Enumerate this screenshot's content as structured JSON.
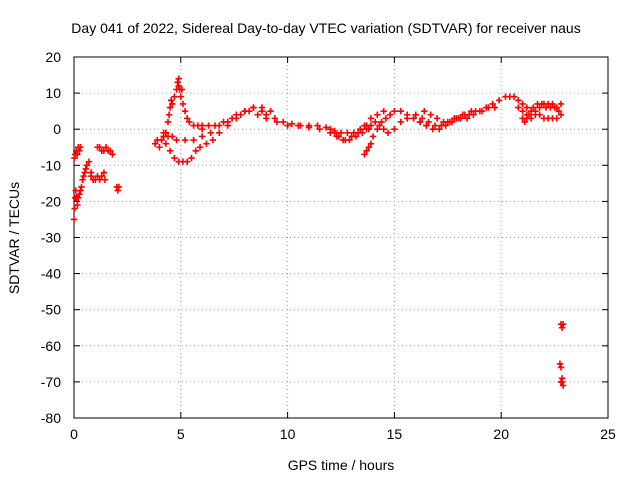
{
  "chart_data": {
    "type": "scatter",
    "title": "Day 041 of 2022, Sidereal Day-to-day VTEC variation (SDTVAR) for receiver naus",
    "xlabel": "GPS time / hours",
    "ylabel": "SDTVAR / TECUs",
    "xlim": [
      0,
      25
    ],
    "ylim": [
      -80,
      20
    ],
    "grid": true,
    "marker": "+",
    "color": "#ff0000",
    "x_ticks": [
      0,
      5,
      10,
      15,
      20,
      25
    ],
    "x_tick_labels": [
      "0",
      "5",
      "10",
      "15",
      "20",
      "25"
    ],
    "y_ticks": [
      20,
      10,
      0,
      -10,
      -20,
      -30,
      -40,
      -50,
      -60,
      -70,
      -80
    ],
    "y_tick_labels": [
      "20",
      "10",
      "0",
      "-10",
      "-20",
      "-30",
      "-40",
      "-50",
      "-60",
      "-70",
      "-80"
    ],
    "series": [
      {
        "name": "SDTVAR",
        "points": [
          [
            0.0,
            -25
          ],
          [
            0.03,
            -22
          ],
          [
            0.05,
            -19
          ],
          [
            0.08,
            -17
          ],
          [
            0.12,
            -19
          ],
          [
            0.16,
            -21
          ],
          [
            0.2,
            -19
          ],
          [
            0.25,
            -18
          ],
          [
            0.3,
            -17
          ],
          [
            0.35,
            -16
          ],
          [
            0.4,
            -14
          ],
          [
            0.45,
            -13
          ],
          [
            0.5,
            -12
          ],
          [
            0.55,
            -11
          ],
          [
            0.6,
            -10
          ],
          [
            0.7,
            -9
          ],
          [
            0.8,
            -12
          ],
          [
            0.02,
            -8
          ],
          [
            0.05,
            -7
          ],
          [
            0.1,
            -6
          ],
          [
            0.15,
            -7
          ],
          [
            0.2,
            -5
          ],
          [
            0.25,
            -6
          ],
          [
            0.3,
            -5
          ],
          [
            0.8,
            -13
          ],
          [
            0.9,
            -14
          ],
          [
            1.0,
            -14
          ],
          [
            1.1,
            -13
          ],
          [
            1.2,
            -14
          ],
          [
            1.3,
            -13
          ],
          [
            1.4,
            -12
          ],
          [
            1.45,
            -14
          ],
          [
            1.1,
            -5
          ],
          [
            1.2,
            -5
          ],
          [
            1.3,
            -6
          ],
          [
            1.4,
            -6
          ],
          [
            1.5,
            -5
          ],
          [
            1.6,
            -6
          ],
          [
            1.7,
            -6
          ],
          [
            1.8,
            -7
          ],
          [
            2.0,
            -16
          ],
          [
            2.05,
            -17
          ],
          [
            2.1,
            -16
          ],
          [
            3.8,
            -4
          ],
          [
            3.9,
            -3
          ],
          [
            4.0,
            -5
          ],
          [
            4.1,
            -3
          ],
          [
            4.2,
            -2
          ],
          [
            4.3,
            -1
          ],
          [
            4.4,
            2
          ],
          [
            4.45,
            4
          ],
          [
            4.5,
            6
          ],
          [
            4.55,
            8
          ],
          [
            4.6,
            7
          ],
          [
            4.7,
            9
          ],
          [
            4.8,
            11
          ],
          [
            4.9,
            12
          ],
          [
            4.95,
            11
          ],
          [
            5.0,
            9
          ],
          [
            5.1,
            7
          ],
          [
            5.2,
            5
          ],
          [
            5.3,
            3
          ],
          [
            5.4,
            2
          ],
          [
            5.6,
            1
          ],
          [
            5.8,
            1
          ],
          [
            6.0,
            1
          ],
          [
            4.3,
            -4
          ],
          [
            4.5,
            -6
          ],
          [
            4.7,
            -8
          ],
          [
            4.9,
            -9
          ],
          [
            5.1,
            -9
          ],
          [
            5.3,
            -9
          ],
          [
            5.5,
            -8
          ],
          [
            5.7,
            -6
          ],
          [
            5.9,
            -5
          ],
          [
            6.2,
            -4
          ],
          [
            6.5,
            -3
          ],
          [
            6.8,
            -1
          ],
          [
            7.2,
            1
          ],
          [
            7.6,
            3
          ],
          [
            8.0,
            5
          ],
          [
            8.4,
            6
          ],
          [
            8.8,
            6
          ],
          [
            9.2,
            5
          ],
          [
            4.2,
            -1
          ],
          [
            4.4,
            -2
          ],
          [
            4.6,
            -2
          ],
          [
            4.8,
            -3
          ],
          [
            5.2,
            -3
          ],
          [
            5.6,
            -3
          ],
          [
            6.0,
            -2
          ],
          [
            6.4,
            -1
          ],
          [
            6.8,
            1
          ],
          [
            7.2,
            2
          ],
          [
            7.6,
            4
          ],
          [
            8.0,
            5
          ],
          [
            8.4,
            6
          ],
          [
            8.8,
            5
          ],
          [
            4.9,
            14
          ],
          [
            4.85,
            13
          ],
          [
            5.05,
            11
          ],
          [
            6.0,
            0
          ],
          [
            6.3,
            1
          ],
          [
            6.6,
            1
          ],
          [
            7.0,
            2
          ],
          [
            7.4,
            3
          ],
          [
            7.8,
            4
          ],
          [
            8.2,
            5
          ],
          [
            8.6,
            4
          ],
          [
            9.0,
            4
          ],
          [
            9.4,
            3
          ],
          [
            9.8,
            2
          ],
          [
            10.2,
            1.5
          ],
          [
            10.6,
            1
          ],
          [
            11.0,
            1
          ],
          [
            11.4,
            1
          ],
          [
            11.8,
            0.5
          ],
          [
            12.0,
            0
          ],
          [
            12.2,
            -0.5
          ],
          [
            12.5,
            -1
          ],
          [
            12.8,
            -1
          ],
          [
            13.1,
            -1
          ],
          [
            13.4,
            0
          ],
          [
            13.7,
            1
          ],
          [
            9.0,
            3
          ],
          [
            9.5,
            2
          ],
          [
            10.0,
            1
          ],
          [
            10.5,
            1
          ],
          [
            11.0,
            0.5
          ],
          [
            11.5,
            0
          ],
          [
            12.0,
            -1
          ],
          [
            12.3,
            -2
          ],
          [
            12.6,
            -3
          ],
          [
            12.9,
            -3
          ],
          [
            13.2,
            -2
          ],
          [
            13.5,
            -1
          ],
          [
            13.8,
            0
          ],
          [
            12.2,
            -1
          ],
          [
            12.4,
            -2
          ],
          [
            12.7,
            -3
          ],
          [
            13.0,
            -2
          ],
          [
            13.3,
            -1
          ],
          [
            13.6,
            1
          ],
          [
            13.9,
            3
          ],
          [
            14.2,
            4
          ],
          [
            14.5,
            5
          ],
          [
            14.8,
            4
          ],
          [
            13.6,
            -7
          ],
          [
            13.7,
            -6
          ],
          [
            13.8,
            -5
          ],
          [
            13.9,
            -4
          ],
          [
            14.0,
            -2
          ],
          [
            14.2,
            0
          ],
          [
            14.4,
            2
          ],
          [
            14.6,
            3
          ],
          [
            14.8,
            4
          ],
          [
            15.0,
            5
          ],
          [
            15.3,
            5
          ],
          [
            15.6,
            4
          ],
          [
            15.9,
            3
          ],
          [
            16.2,
            2
          ],
          [
            16.5,
            1
          ],
          [
            13.7,
            0
          ],
          [
            13.9,
            1
          ],
          [
            14.1,
            2
          ],
          [
            14.3,
            1
          ],
          [
            14.5,
            0
          ],
          [
            14.7,
            -1
          ],
          [
            15.0,
            0
          ],
          [
            15.3,
            2
          ],
          [
            15.6,
            3
          ],
          [
            16.0,
            4
          ],
          [
            16.3,
            3
          ],
          [
            16.6,
            2
          ],
          [
            16.9,
            1
          ],
          [
            17.2,
            1
          ],
          [
            17.5,
            2
          ],
          [
            17.8,
            3
          ],
          [
            18.1,
            3
          ],
          [
            18.4,
            3
          ],
          [
            18.7,
            4
          ],
          [
            19.0,
            5
          ],
          [
            19.3,
            6
          ],
          [
            19.6,
            7
          ],
          [
            19.9,
            8
          ],
          [
            20.2,
            9
          ],
          [
            20.4,
            9
          ],
          [
            16.2,
            2
          ],
          [
            16.5,
            1
          ],
          [
            16.8,
            0
          ],
          [
            17.1,
            0
          ],
          [
            17.4,
            1
          ],
          [
            17.7,
            2
          ],
          [
            18.0,
            3
          ],
          [
            18.3,
            4
          ],
          [
            18.6,
            5
          ],
          [
            16.4,
            5
          ],
          [
            16.7,
            4
          ],
          [
            17.0,
            3
          ],
          [
            17.3,
            2
          ],
          [
            17.6,
            2
          ],
          [
            17.9,
            3
          ],
          [
            18.2,
            4
          ],
          [
            18.5,
            4
          ],
          [
            18.8,
            5
          ],
          [
            19.1,
            5
          ],
          [
            19.4,
            6
          ],
          [
            19.7,
            6
          ],
          [
            20.6,
            9
          ],
          [
            20.8,
            8
          ],
          [
            21.0,
            7
          ],
          [
            21.2,
            6
          ],
          [
            21.4,
            5
          ],
          [
            21.6,
            5
          ],
          [
            21.8,
            6
          ],
          [
            22.0,
            7
          ],
          [
            22.2,
            7
          ],
          [
            22.4,
            7
          ],
          [
            22.6,
            6
          ],
          [
            22.8,
            7
          ],
          [
            20.8,
            6
          ],
          [
            21.0,
            5
          ],
          [
            21.2,
            4
          ],
          [
            21.4,
            3
          ],
          [
            21.6,
            4
          ],
          [
            21.8,
            4
          ],
          [
            22.0,
            3
          ],
          [
            22.2,
            3
          ],
          [
            22.4,
            3
          ],
          [
            22.6,
            3
          ],
          [
            22.8,
            4
          ],
          [
            21.0,
            3
          ],
          [
            21.1,
            2
          ],
          [
            21.2,
            3
          ],
          [
            21.3,
            4
          ],
          [
            21.5,
            6
          ],
          [
            21.7,
            7
          ],
          [
            21.9,
            7
          ],
          [
            22.1,
            6
          ],
          [
            22.3,
            6
          ],
          [
            22.5,
            6
          ],
          [
            22.7,
            5
          ],
          [
            22.8,
            -54
          ],
          [
            22.85,
            -55
          ],
          [
            22.9,
            -54
          ],
          [
            22.75,
            -65
          ],
          [
            22.8,
            -66
          ],
          [
            22.85,
            -69
          ],
          [
            22.8,
            -70
          ],
          [
            22.9,
            -71
          ],
          [
            22.85,
            -70
          ]
        ]
      }
    ]
  }
}
